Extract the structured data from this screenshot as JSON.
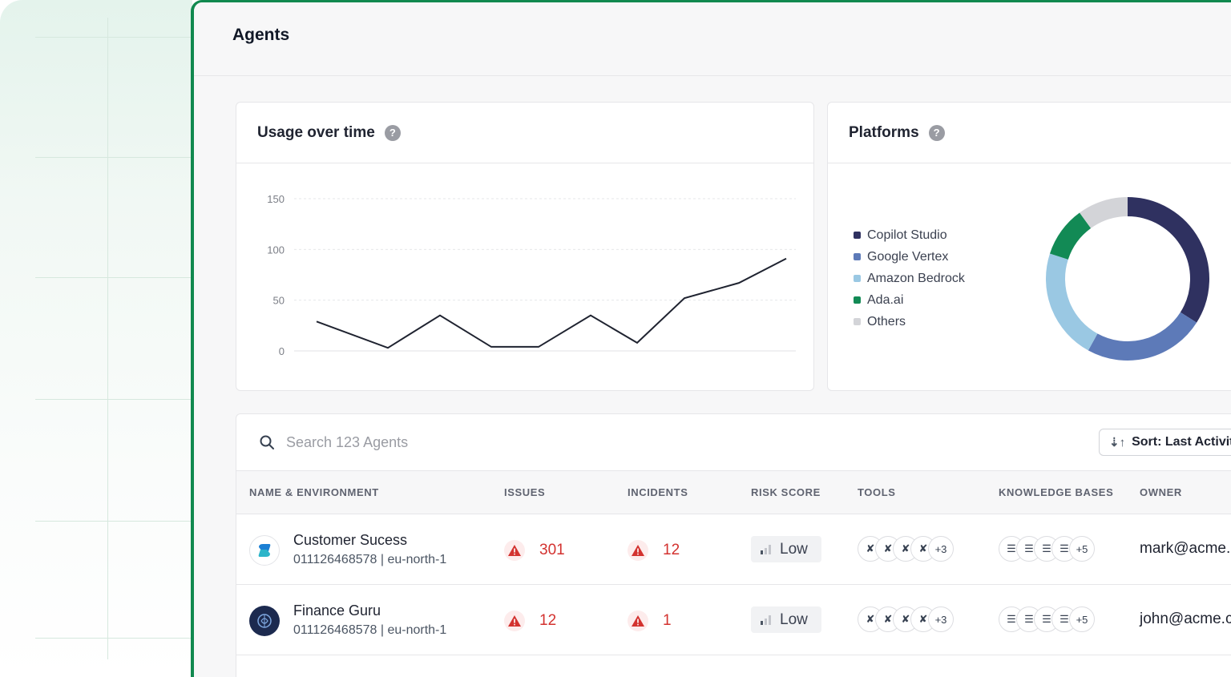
{
  "page": {
    "title": "Agents"
  },
  "usage_card": {
    "title": "Usage over time",
    "chart_data": {
      "type": "line",
      "title": "Usage over time",
      "x": [
        1,
        2,
        3,
        4,
        5,
        6,
        7,
        8,
        9,
        10
      ],
      "series": [
        {
          "values": [
            29,
            3,
            35,
            4,
            4,
            35,
            8,
            52,
            67,
            91
          ]
        }
      ],
      "yticks": [
        0,
        50,
        100,
        150
      ],
      "ylim": [
        0,
        150
      ],
      "grid": true,
      "line_color": "#1f2330"
    }
  },
  "platforms_card": {
    "title": "Platforms",
    "chart_data": {
      "type": "pie",
      "donut": true,
      "labels": [
        "Copilot Studio",
        "Google Vertex",
        "Amazon Bedrock",
        "Ada.ai",
        "Others"
      ],
      "values": [
        34,
        24,
        22,
        10,
        10
      ],
      "colors": [
        "#2f3160",
        "#5d7ab8",
        "#9ac8e3",
        "#128a55",
        "#d3d4d8"
      ],
      "legend_position": "left"
    }
  },
  "table": {
    "search_placeholder": "Search 123 Agents",
    "sort_label": "Sort: Last Activity",
    "columns": [
      "NAME & ENVIRONMENT",
      "ISSUES",
      "INCIDENTS",
      "RISK SCORE",
      "TOOLS",
      "KNOWLEDGE BASES",
      "OWNER"
    ],
    "rows": [
      {
        "name": "Customer Sucess",
        "environment": "011126468578 | eu-north-1",
        "issues": "301",
        "incidents": "12",
        "risk": "Low",
        "tools_more": "+3",
        "kb_more": "+5",
        "owner": "mark@acme.com",
        "avatar_icon": "copilot-icon"
      },
      {
        "name": "Finance Guru",
        "environment": "011126468578 | eu-north-1",
        "issues": "12",
        "incidents": "1",
        "risk": "Low",
        "tools_more": "+3",
        "kb_more": "+5",
        "owner": "john@acme.com",
        "avatar_icon": "brain-icon"
      }
    ]
  },
  "colors": {
    "accent": "#11894f",
    "alert": "#d3322f"
  }
}
